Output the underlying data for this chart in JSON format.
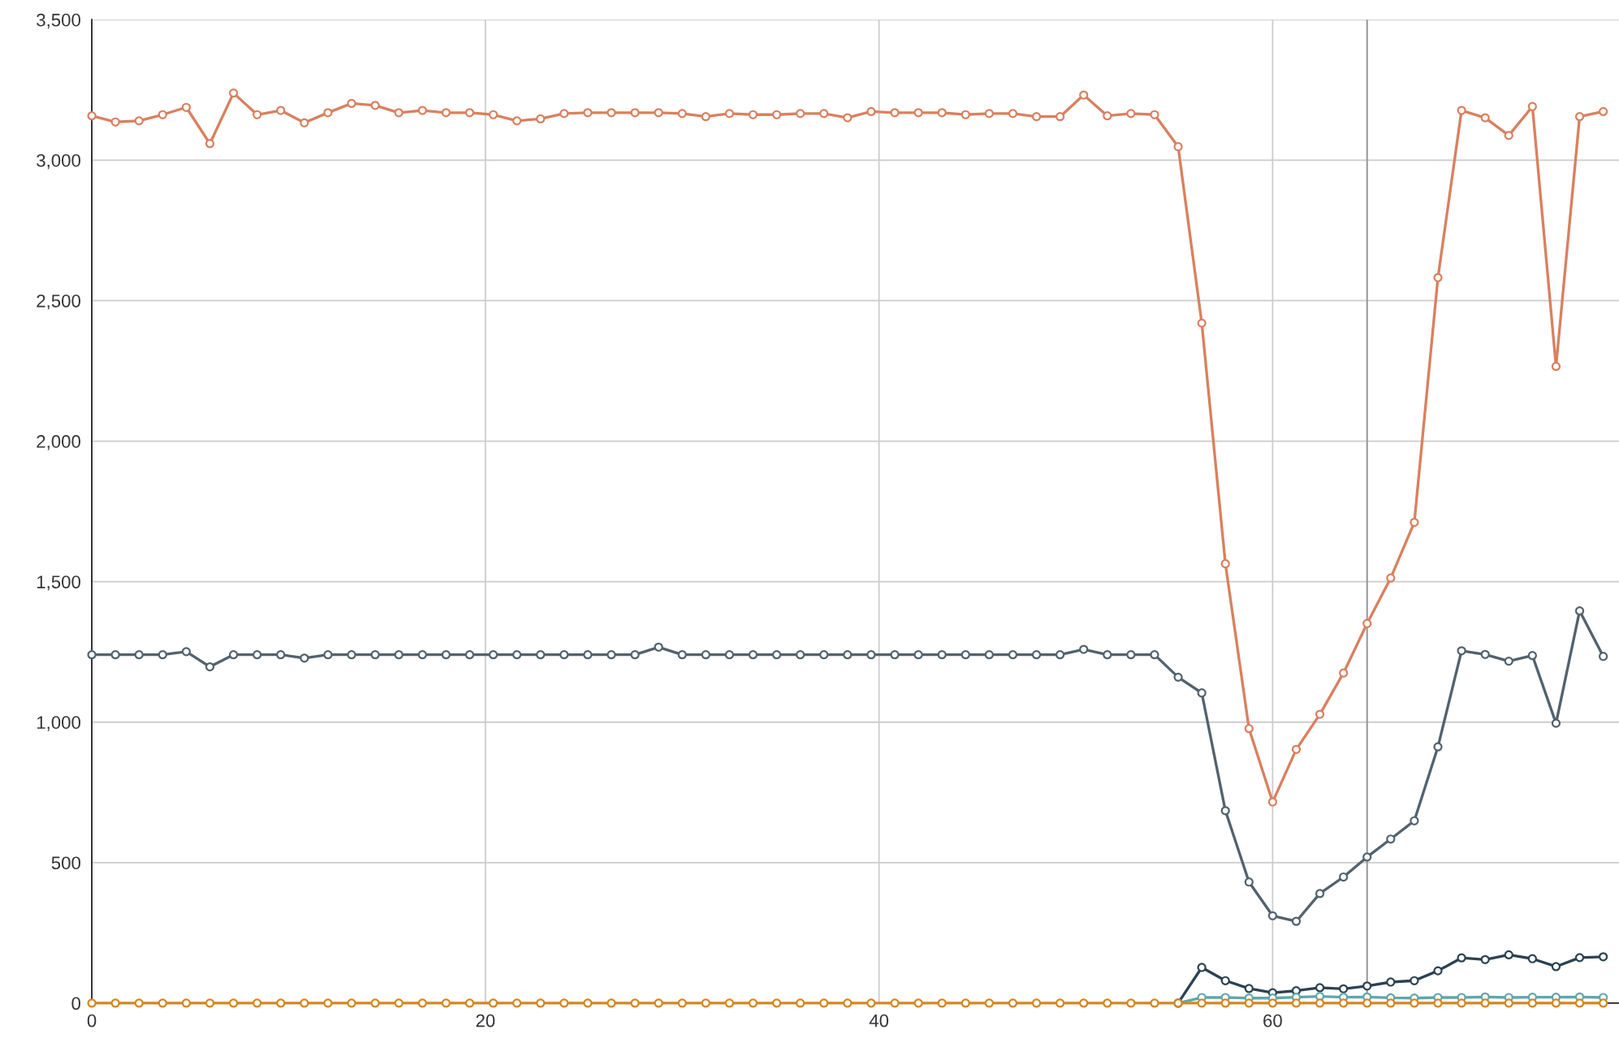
{
  "chart_data": {
    "type": "line",
    "x": [
      0,
      1.2,
      2.4,
      3.6,
      4.8,
      6,
      7.2,
      8.4,
      9.6,
      10.8,
      12,
      13.2,
      14.4,
      15.6,
      16.8,
      18,
      19.2,
      20.4,
      21.6,
      22.8,
      24,
      25.2,
      26.4,
      27.6,
      28.8,
      30,
      31.2,
      32.4,
      33.6,
      34.8,
      36,
      37.2,
      38.4,
      39.6,
      40.8,
      42,
      43.2,
      44.4,
      45.6,
      46.8,
      48,
      49.2,
      50.4,
      51.6,
      52.8,
      54,
      55.2,
      56.4,
      57.6,
      58.8,
      60,
      61.2,
      62.4,
      63.6,
      64.8,
      66,
      67.2,
      68.4,
      69.6,
      70.8,
      72,
      73.2,
      74.4,
      75.6,
      76.8
    ],
    "series": [
      {
        "color": "#d9805f",
        "values": [
          3158,
          3136,
          3140,
          3162,
          3188,
          3059,
          3239,
          3162,
          3177,
          3133,
          3169,
          3202,
          3195,
          3169,
          3177,
          3169,
          3169,
          3162,
          3140,
          3147,
          3166,
          3169,
          3169,
          3169,
          3169,
          3166,
          3155,
          3166,
          3162,
          3162,
          3166,
          3166,
          3151,
          3173,
          3169,
          3169,
          3169,
          3162,
          3166,
          3166,
          3155,
          3155,
          3232,
          3158,
          3166,
          3162,
          3048,
          2420,
          1564,
          977,
          716,
          903,
          1028,
          1175,
          1351,
          1513,
          1711,
          2582,
          3177,
          3151,
          3088,
          3191,
          2266,
          3155,
          3173
        ]
      },
      {
        "color": "#52626e",
        "values": [
          1240,
          1240,
          1240,
          1240,
          1251,
          1197,
          1240,
          1240,
          1240,
          1228,
          1240,
          1240,
          1240,
          1240,
          1240,
          1240,
          1240,
          1240,
          1240,
          1240,
          1240,
          1240,
          1240,
          1240,
          1267,
          1240,
          1240,
          1240,
          1240,
          1240,
          1240,
          1240,
          1240,
          1240,
          1240,
          1240,
          1240,
          1240,
          1240,
          1240,
          1240,
          1240,
          1259,
          1240,
          1240,
          1240,
          1160,
          1104,
          685,
          431,
          311,
          291,
          390,
          449,
          520,
          584,
          649,
          912,
          1254,
          1241,
          1217,
          1237,
          996,
          1396,
          1234
        ]
      },
      {
        "color": "#2b4252",
        "values": [
          null,
          null,
          null,
          null,
          null,
          null,
          null,
          null,
          null,
          null,
          null,
          null,
          null,
          null,
          null,
          null,
          null,
          null,
          null,
          null,
          null,
          null,
          null,
          null,
          null,
          null,
          null,
          null,
          null,
          null,
          null,
          null,
          null,
          null,
          null,
          null,
          null,
          null,
          null,
          null,
          null,
          null,
          null,
          null,
          null,
          null,
          0,
          127,
          80,
          52,
          37,
          44,
          55,
          51,
          61,
          75,
          80,
          115,
          161,
          155,
          172,
          158,
          130,
          162,
          165
        ]
      },
      {
        "color": "#5ea7ad",
        "values": [
          null,
          null,
          null,
          null,
          null,
          null,
          null,
          null,
          null,
          null,
          null,
          null,
          null,
          null,
          null,
          null,
          null,
          null,
          null,
          null,
          null,
          null,
          null,
          null,
          null,
          null,
          null,
          null,
          null,
          null,
          null,
          null,
          null,
          null,
          null,
          null,
          null,
          null,
          null,
          null,
          null,
          null,
          null,
          null,
          null,
          null,
          0,
          20,
          20,
          18,
          18,
          21,
          24,
          21,
          22,
          19,
          18,
          20,
          20,
          22,
          20,
          21,
          21,
          22,
          20
        ]
      },
      {
        "color": "#d4861f",
        "values": [
          0,
          0,
          0,
          0,
          0,
          0,
          0,
          0,
          0,
          0,
          0,
          0,
          0,
          0,
          0,
          0,
          0,
          0,
          0,
          0,
          0,
          0,
          0,
          0,
          0,
          0,
          0,
          0,
          0,
          0,
          0,
          0,
          0,
          0,
          0,
          0,
          0,
          0,
          0,
          0,
          0,
          0,
          0,
          0,
          0,
          0,
          0,
          0,
          0,
          0,
          0,
          0,
          0,
          0,
          0,
          0,
          0,
          0,
          0,
          0,
          0,
          0,
          0,
          0,
          0
        ]
      }
    ],
    "xlim": [
      0,
      77.6
    ],
    "xticks": [
      0,
      20,
      40,
      60
    ],
    "ylim": [
      0,
      3500
    ],
    "yticks": [
      0,
      500,
      {
        "value": 1000,
        "label": "1,000"
      },
      {
        "value": 1500,
        "label": "1,500"
      },
      {
        "value": 2000,
        "label": "2,000"
      },
      {
        "value": 2500,
        "label": "2,500"
      },
      {
        "value": 3000,
        "label": "3,000"
      },
      {
        "value": 3500,
        "label": "3,500"
      }
    ],
    "ref_lines": [
      {
        "axis": "x",
        "value": 64.8,
        "color": "#999999"
      }
    ],
    "grid": true,
    "marker": "circle",
    "line_style": "solid",
    "legend": false
  }
}
